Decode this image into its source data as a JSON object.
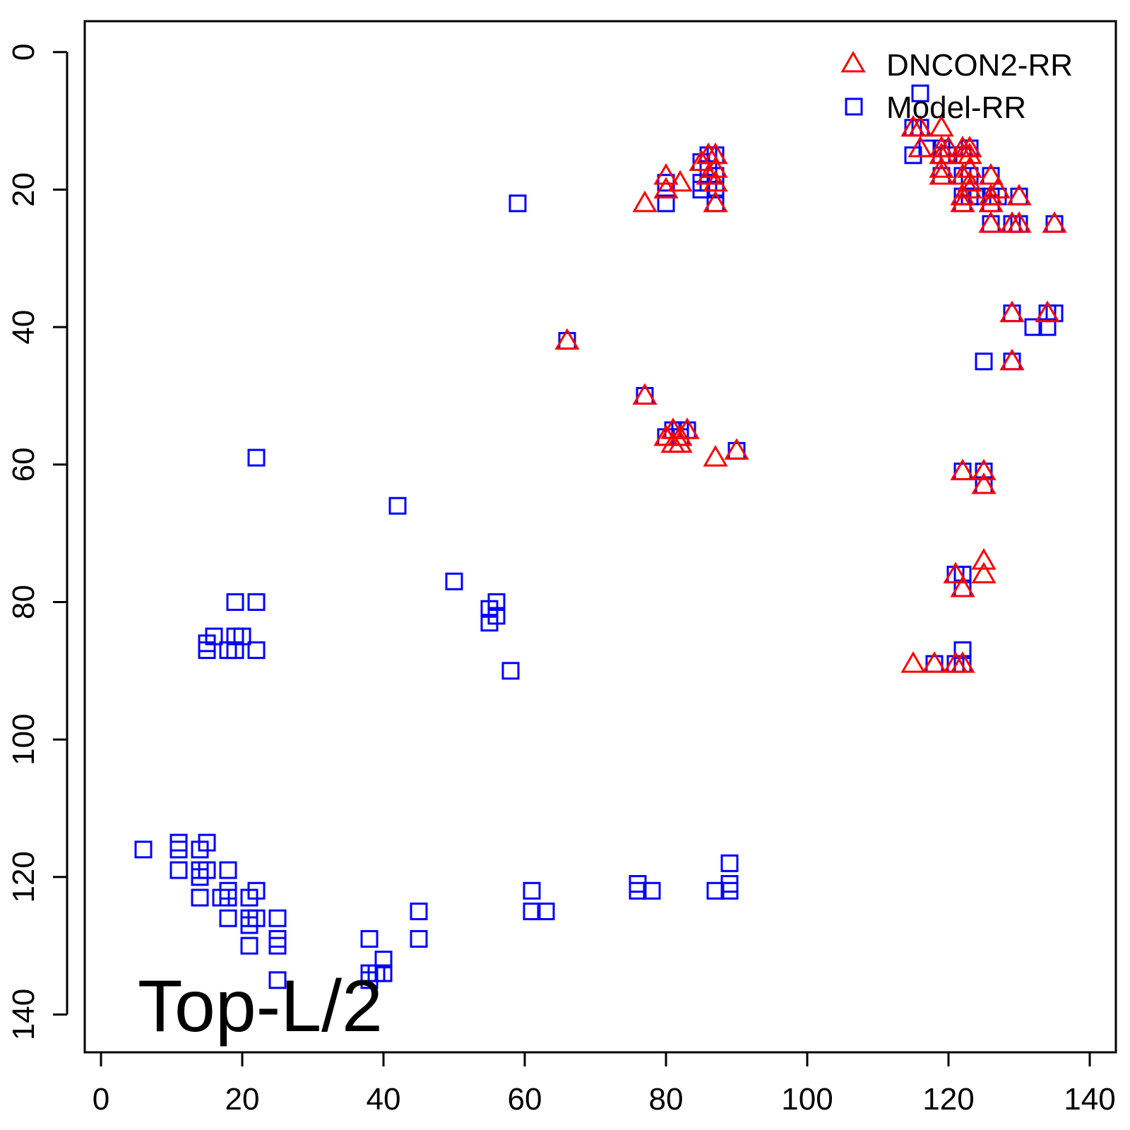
{
  "chart_data": {
    "type": "scatter",
    "title": "",
    "xlabel": "",
    "ylabel": "",
    "xlim": [
      -2.3,
      143.7
    ],
    "ylim": [
      -4.5,
      145.5
    ],
    "y_reversed": true,
    "x_ticks": [
      0,
      20,
      40,
      60,
      80,
      100,
      120,
      140
    ],
    "y_ticks": [
      0,
      20,
      40,
      60,
      80,
      100,
      120,
      140
    ],
    "grid": false,
    "legend_position": "top-right",
    "annotation": "Top-L/2",
    "series": [
      {
        "name": "DNCON2-RR",
        "marker": "triangle",
        "color": "#ff0000",
        "points": [
          [
            77,
            22
          ],
          [
            80,
            18
          ],
          [
            80,
            20
          ],
          [
            82,
            19
          ],
          [
            85,
            16
          ],
          [
            86,
            15
          ],
          [
            86,
            18
          ],
          [
            87,
            15
          ],
          [
            87,
            17
          ],
          [
            87,
            19
          ],
          [
            87,
            22
          ],
          [
            66,
            42
          ],
          [
            77,
            50
          ],
          [
            80,
            56
          ],
          [
            81,
            55
          ],
          [
            81,
            57
          ],
          [
            82,
            56
          ],
          [
            82,
            57
          ],
          [
            83,
            55
          ],
          [
            87,
            59
          ],
          [
            90,
            58
          ],
          [
            115,
            11
          ],
          [
            116,
            11
          ],
          [
            116,
            14
          ],
          [
            119,
            11
          ],
          [
            119,
            14
          ],
          [
            119,
            15
          ],
          [
            119,
            17
          ],
          [
            119,
            18
          ],
          [
            120,
            14
          ],
          [
            122,
            14
          ],
          [
            122,
            15
          ],
          [
            122,
            18
          ],
          [
            122,
            21
          ],
          [
            122,
            22
          ],
          [
            123,
            14
          ],
          [
            123,
            15
          ],
          [
            123,
            17
          ],
          [
            123,
            19
          ],
          [
            123,
            20
          ],
          [
            126,
            18
          ],
          [
            126,
            21
          ],
          [
            126,
            22
          ],
          [
            126,
            25
          ],
          [
            127,
            20
          ],
          [
            129,
            25
          ],
          [
            130,
            21
          ],
          [
            130,
            25
          ],
          [
            135,
            25
          ],
          [
            129,
            38
          ],
          [
            134,
            38
          ],
          [
            129,
            45
          ],
          [
            122,
            61
          ],
          [
            125,
            61
          ],
          [
            125,
            63
          ],
          [
            125,
            74
          ],
          [
            125,
            76
          ],
          [
            121,
            76
          ],
          [
            122,
            78
          ],
          [
            115,
            89
          ],
          [
            118,
            89
          ],
          [
            121,
            89
          ],
          [
            122,
            89
          ]
        ]
      },
      {
        "name": "Model-RR",
        "marker": "square",
        "color": "#0000ff",
        "points": [
          [
            59,
            22
          ],
          [
            80,
            19
          ],
          [
            80,
            22
          ],
          [
            85,
            16
          ],
          [
            85,
            19
          ],
          [
            85,
            20
          ],
          [
            86,
            15
          ],
          [
            86,
            17
          ],
          [
            86,
            19
          ],
          [
            87,
            15
          ],
          [
            87,
            18
          ],
          [
            87,
            20
          ],
          [
            87,
            22
          ],
          [
            66,
            42
          ],
          [
            77,
            50
          ],
          [
            80,
            56
          ],
          [
            81,
            55
          ],
          [
            82,
            55
          ],
          [
            82,
            56
          ],
          [
            83,
            55
          ],
          [
            90,
            58
          ],
          [
            116,
            6
          ],
          [
            115,
            11
          ],
          [
            116,
            11
          ],
          [
            115,
            15
          ],
          [
            117,
            14
          ],
          [
            119,
            14
          ],
          [
            119,
            15
          ],
          [
            119,
            18
          ],
          [
            120,
            15
          ],
          [
            122,
            15
          ],
          [
            122,
            18
          ],
          [
            122,
            21
          ],
          [
            122,
            22
          ],
          [
            123,
            14
          ],
          [
            123,
            18
          ],
          [
            123,
            21
          ],
          [
            124,
            21
          ],
          [
            126,
            18
          ],
          [
            126,
            21
          ],
          [
            126,
            22
          ],
          [
            126,
            25
          ],
          [
            127,
            21
          ],
          [
            129,
            25
          ],
          [
            130,
            21
          ],
          [
            130,
            25
          ],
          [
            135,
            25
          ],
          [
            129,
            38
          ],
          [
            134,
            38
          ],
          [
            135,
            38
          ],
          [
            132,
            40
          ],
          [
            134,
            40
          ],
          [
            125,
            45
          ],
          [
            129,
            45
          ],
          [
            122,
            61
          ],
          [
            125,
            61
          ],
          [
            125,
            63
          ],
          [
            121,
            76
          ],
          [
            122,
            76
          ],
          [
            122,
            78
          ],
          [
            122,
            87
          ],
          [
            118,
            89
          ],
          [
            121,
            89
          ],
          [
            122,
            89
          ],
          [
            22,
            59
          ],
          [
            42,
            66
          ],
          [
            50,
            77
          ],
          [
            56,
            80
          ],
          [
            55,
            81
          ],
          [
            56,
            82
          ],
          [
            55,
            83
          ],
          [
            58,
            90
          ],
          [
            19,
            80
          ],
          [
            22,
            80
          ],
          [
            16,
            85
          ],
          [
            19,
            85
          ],
          [
            20,
            85
          ],
          [
            15,
            86
          ],
          [
            15,
            87
          ],
          [
            18,
            87
          ],
          [
            19,
            87
          ],
          [
            22,
            87
          ],
          [
            6,
            116
          ],
          [
            11,
            115
          ],
          [
            11,
            116
          ],
          [
            14,
            116
          ],
          [
            15,
            115
          ],
          [
            11,
            119
          ],
          [
            14,
            119
          ],
          [
            15,
            119
          ],
          [
            18,
            119
          ],
          [
            14,
            120
          ],
          [
            14,
            123
          ],
          [
            17,
            123
          ],
          [
            18,
            122
          ],
          [
            18,
            123
          ],
          [
            21,
            123
          ],
          [
            22,
            122
          ],
          [
            18,
            126
          ],
          [
            21,
            126
          ],
          [
            22,
            126
          ],
          [
            21,
            127
          ],
          [
            21,
            130
          ],
          [
            25,
            126
          ],
          [
            25,
            129
          ],
          [
            25,
            130
          ],
          [
            25,
            135
          ],
          [
            38,
            129
          ],
          [
            38,
            134
          ],
          [
            38,
            135
          ],
          [
            39,
            134
          ],
          [
            40,
            132
          ],
          [
            40,
            134
          ],
          [
            45,
            125
          ],
          [
            45,
            129
          ],
          [
            61,
            122
          ],
          [
            61,
            125
          ],
          [
            63,
            125
          ],
          [
            76,
            121
          ],
          [
            76,
            122
          ],
          [
            78,
            122
          ],
          [
            87,
            122
          ],
          [
            89,
            118
          ],
          [
            89,
            121
          ],
          [
            89,
            122
          ]
        ]
      }
    ]
  }
}
